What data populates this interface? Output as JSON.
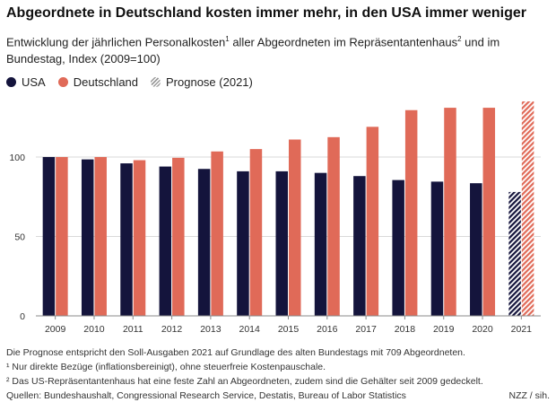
{
  "title": "Abgeordnete in Deutschland kosten immer mehr, in den USA immer weniger",
  "subtitle": {
    "part1": "Entwicklung der jährlichen Personalkosten",
    "sup1": "1",
    "part2": " aller Abgeordneten im Repräsentantenhaus",
    "sup2": "2",
    "part3": " und im Bundestag, Index (2009=100)"
  },
  "legend": {
    "usa": "USA",
    "deutschland": "Deutschland",
    "prognose": "Prognose (2021)"
  },
  "colors": {
    "usa": "#14143c",
    "deutschland": "#e06a58",
    "grid": "#d9d9d9",
    "axis": "#8a8a8a"
  },
  "chart_data": {
    "type": "bar",
    "categories": [
      "2009",
      "2010",
      "2011",
      "2012",
      "2013",
      "2014",
      "2015",
      "2016",
      "2017",
      "2018",
      "2019",
      "2020",
      "2021"
    ],
    "series": [
      {
        "name": "USA",
        "values": [
          100,
          98.5,
          96,
          94,
          92.5,
          91,
          91,
          90,
          88,
          85.5,
          84.5,
          83.5,
          78
        ]
      },
      {
        "name": "Deutschland",
        "values": [
          100,
          100,
          98,
          99.5,
          103.5,
          105,
          111,
          112.5,
          119,
          129.5,
          131,
          131,
          135
        ]
      }
    ],
    "forecast_category": "2021",
    "ylim": [
      0,
      135
    ],
    "yticks": [
      0,
      50,
      100
    ],
    "xlabel": "",
    "ylabel": "",
    "grid": true,
    "legend_position": "top-left"
  },
  "notes": {
    "line1": "Die Prognose entspricht den Soll-Ausgaben 2021 auf Grundlage des alten Bundestags mit 709 Abgeordneten.",
    "line2": "¹ Nur direkte Bezüge (inflationsbereinigt), ohne steuerfreie Kostenpauschale.",
    "line3": "² Das US-Repräsentantenhaus hat eine feste Zahl an Abgeordneten, zudem sind die Gehälter seit 2009 gedeckelt.",
    "sources": "Quellen: Bundeshaushalt, Congressional Research Service, Destatis, Bureau of Labor Statistics",
    "credit": "NZZ / sih."
  }
}
